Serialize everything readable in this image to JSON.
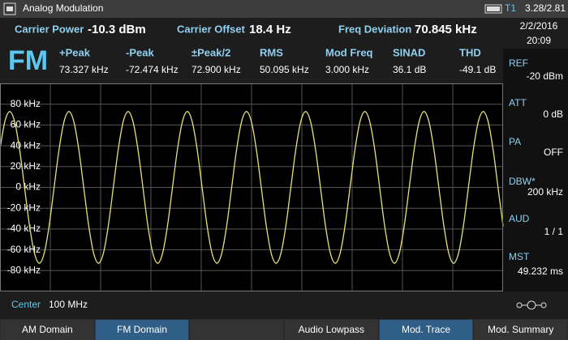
{
  "header": {
    "title": "Analog Modulation",
    "trace": "T1",
    "counter": "3.28/2.81"
  },
  "summary": [
    {
      "label": "Carrier Power",
      "value": "-10.3 dBm"
    },
    {
      "label": "Carrier Offset",
      "value": "18.4 Hz"
    },
    {
      "label": "Freq Deviation",
      "value": "70.845 kHz"
    }
  ],
  "datetime": {
    "date": "2/2/2016",
    "time": "20:09"
  },
  "mode": "FM",
  "measurements": [
    {
      "label": "+Peak",
      "value": "73.327 kHz"
    },
    {
      "label": "-Peak",
      "value": "-72.474 kHz"
    },
    {
      "label": "±Peak/2",
      "value": "72.900 kHz"
    },
    {
      "label": "RMS",
      "value": "50.095 kHz"
    },
    {
      "label": "Mod Freq",
      "value": "3.000 kHz"
    },
    {
      "label": "SINAD",
      "value": "36.1 dB"
    },
    {
      "label": "THD",
      "value": "-49.1 dB"
    }
  ],
  "side_params": [
    {
      "label": "REF",
      "value": "-20 dBm"
    },
    {
      "label": "ATT",
      "value": "0 dB"
    },
    {
      "label": "PA",
      "value": "OFF"
    },
    {
      "label": "DBW*",
      "value": "200 kHz"
    },
    {
      "label": "AUD",
      "value": "1 / 1"
    },
    {
      "label": "MST",
      "value": "49.232 ms"
    }
  ],
  "plot": {
    "type": "line",
    "color": "#e6e27a",
    "ylim": [
      -100,
      100
    ],
    "yticks": [
      {
        "value": 80,
        "label": "80 kHz"
      },
      {
        "value": 60,
        "label": "60 kHz"
      },
      {
        "value": 40,
        "label": "40 kHz"
      },
      {
        "value": 20,
        "label": "20 kHz"
      },
      {
        "value": 0,
        "label": "0 kHz"
      },
      {
        "value": -20,
        "label": "-20 kHz"
      },
      {
        "value": -40,
        "label": "-40 kHz"
      },
      {
        "value": -60,
        "label": "-60 kHz"
      },
      {
        "value": -80,
        "label": "-80 kHz"
      }
    ],
    "values": [
      37.3,
      63.6,
      72.9,
      62.6,
      35.6,
      -1.0,
      -37.3,
      -63.6,
      -72.9,
      -62.6,
      -35.6,
      1.1,
      37.3,
      63.6,
      72.9,
      62.6,
      35.6,
      -1.0,
      -37.3,
      -63.6,
      -72.9,
      -62.6,
      -35.6,
      1.1,
      37.3,
      63.6,
      72.9,
      62.6,
      35.6,
      -1.0,
      -37.3,
      -63.6,
      -72.9,
      -62.6,
      -35.6,
      1.1,
      37.3,
      63.6,
      72.9,
      62.6,
      35.6,
      -1.0,
      -37.3,
      -63.6,
      -72.9,
      -62.6,
      -35.6,
      1.1,
      37.3,
      63.6,
      72.9,
      62.6,
      35.6,
      -1.0,
      -37.3,
      -63.6,
      -72.9,
      -62.6,
      -35.6,
      1.1,
      37.3,
      63.6,
      72.9,
      62.6,
      35.6,
      -1.0,
      -37.3,
      -63.6,
      -72.9,
      -62.6,
      -35.6,
      1.1,
      37.3,
      63.6,
      72.9,
      62.6,
      35.6,
      -1.0,
      -37.3,
      -63.6,
      -72.9,
      -62.6,
      -35.6,
      1.1,
      37.3,
      63.6,
      72.9,
      62.6,
      35.6,
      -1.0,
      -37.3,
      -63.6,
      -72.9,
      -62.6,
      -35.6,
      1.1,
      37.3,
      63.6,
      72.9,
      62.6,
      35.6,
      -1.0,
      -37.3
    ]
  },
  "center": {
    "label": "Center",
    "value": "100 MHz"
  },
  "softkeys": [
    {
      "label": "AM Domain",
      "active": false
    },
    {
      "label": "FM Domain",
      "active": true
    },
    {
      "label": "Audio Lowpass",
      "active": false
    },
    {
      "label": "Mod. Trace",
      "active": true
    },
    {
      "label": "Mod. Summary",
      "active": false
    }
  ]
}
